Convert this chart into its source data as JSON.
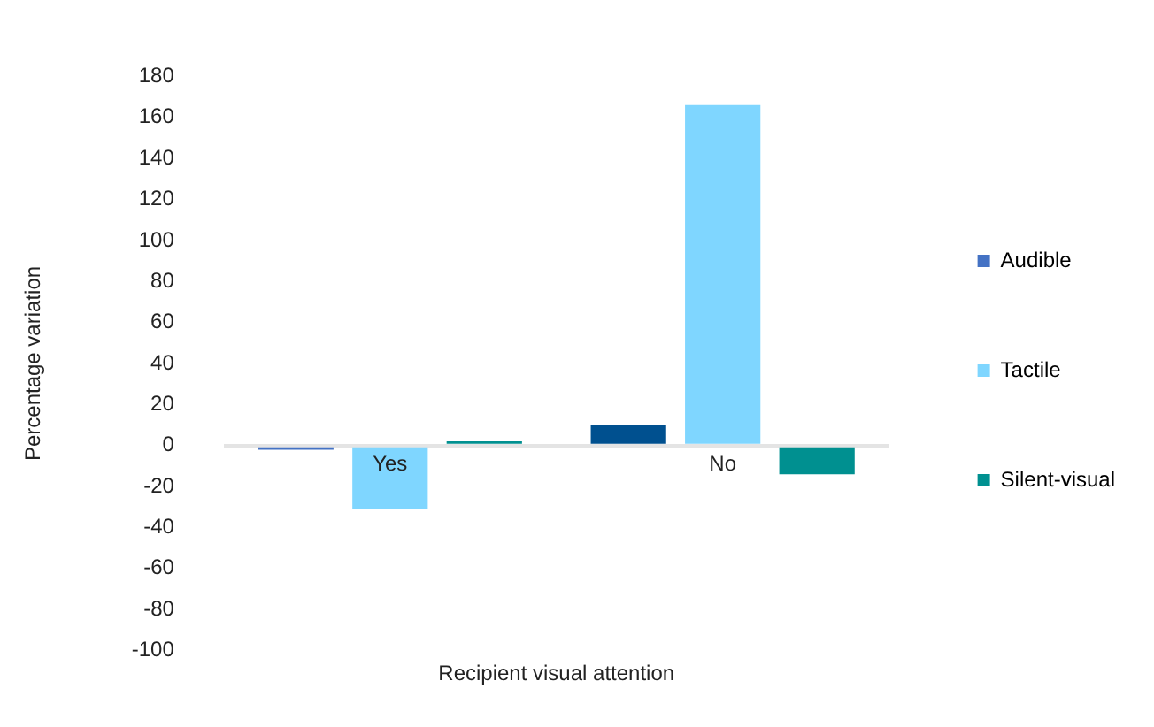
{
  "chart_data": {
    "type": "bar",
    "xlabel": "Recipient visual attention",
    "ylabel": "Percentage variation",
    "categories": [
      "Yes",
      "No"
    ],
    "series": [
      {
        "name": "Audible",
        "color": "#4472c4",
        "colors": [
          "#4472c4",
          "#00508f"
        ],
        "values": [
          -2,
          10
        ]
      },
      {
        "name": "Tactile",
        "color": "#7fd6ff",
        "values": [
          -31,
          166
        ]
      },
      {
        "name": "Silent-visual",
        "color": "#009090",
        "values": [
          2,
          -14
        ]
      }
    ],
    "ylim": [
      -100,
      180
    ],
    "yticks": [
      -100,
      -80,
      -60,
      -40,
      -20,
      0,
      20,
      40,
      60,
      80,
      100,
      120,
      140,
      160,
      180
    ],
    "legend": "right",
    "grid": false
  }
}
